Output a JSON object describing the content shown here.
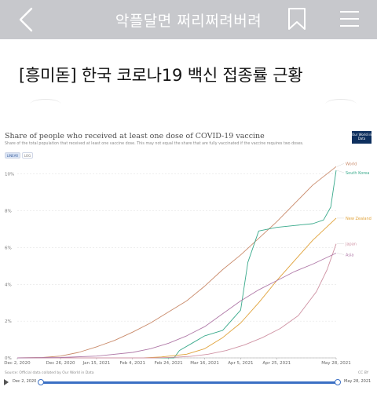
{
  "header": {
    "title": "악플달면 쩌리쩌려버려",
    "back_icon": "chevron-left-icon",
    "bookmark_icon": "bookmark-icon",
    "menu_icon": "hamburger-menu-icon"
  },
  "post": {
    "title": "[흥미돋] 한국 코로나19 백신 접종률 근황"
  },
  "chart_data": {
    "type": "line",
    "title": "Share of people who received at least one dose of COVID-19 vaccine",
    "subtitle": "Share of the total population that received at least one vaccine dose. This may not equal the share that are fully vaccinated if the vaccine requires two doses.",
    "scale_toggle": [
      "LINEAR",
      "LOG"
    ],
    "ylim": [
      0,
      10.5
    ],
    "y_ticks": [
      0,
      2,
      4,
      6,
      8,
      10
    ],
    "y_tick_labels": [
      "0%",
      "2%",
      "4%",
      "6%",
      "8%",
      "10%"
    ],
    "x_tick_labels": [
      "Dec 2, 2020",
      "Dec 26, 2020",
      "Jan 15, 2021",
      "Feb 4, 2021",
      "Feb 24, 2021",
      "Mar 16, 2021",
      "Apr 5, 2021",
      "Apr 25, 2021",
      "May 28, 2021"
    ],
    "x_tick_days": [
      0,
      24,
      44,
      64,
      84,
      104,
      124,
      144,
      177
    ],
    "x_max_days": 177,
    "grid": true,
    "series": [
      {
        "name": "World",
        "color": "#c98a6a",
        "x": [
          0,
          14,
          24,
          34,
          44,
          54,
          64,
          74,
          84,
          94,
          104,
          114,
          124,
          134,
          144,
          154,
          164,
          177
        ],
        "y": [
          0,
          0.02,
          0.1,
          0.3,
          0.6,
          0.95,
          1.4,
          1.9,
          2.5,
          3.1,
          3.9,
          4.8,
          5.6,
          6.5,
          7.4,
          8.4,
          9.4,
          10.4
        ]
      },
      {
        "name": "South Korea",
        "color": "#3aaa8c",
        "x": [
          0,
          87,
          90,
          97,
          104,
          114,
          124,
          128,
          134,
          144,
          154,
          164,
          170,
          174,
          177
        ],
        "y": [
          0,
          0,
          0.4,
          0.8,
          1.2,
          1.5,
          2.6,
          5.2,
          6.9,
          7.1,
          7.2,
          7.3,
          7.5,
          8.2,
          10.2
        ]
      },
      {
        "name": "New Zealand",
        "color": "#e0a23a",
        "x": [
          0,
          70,
          80,
          94,
          104,
          114,
          124,
          134,
          144,
          154,
          164,
          177
        ],
        "y": [
          0,
          0,
          0.05,
          0.2,
          0.5,
          1.1,
          1.9,
          3.0,
          4.2,
          5.3,
          6.4,
          7.6
        ]
      },
      {
        "name": "Japan",
        "color": "#cf93a4",
        "x": [
          0,
          76,
          86,
          96,
          106,
          116,
          126,
          136,
          146,
          156,
          166,
          172,
          177
        ],
        "y": [
          0,
          0,
          0.03,
          0.08,
          0.2,
          0.4,
          0.7,
          1.1,
          1.6,
          2.3,
          3.6,
          4.8,
          6.2
        ]
      },
      {
        "name": "Asia",
        "color": "#b07aa8",
        "x": [
          0,
          24,
          44,
          64,
          74,
          84,
          94,
          104,
          114,
          124,
          134,
          144,
          154,
          164,
          177
        ],
        "y": [
          0,
          0.02,
          0.1,
          0.3,
          0.5,
          0.8,
          1.2,
          1.7,
          2.4,
          3.1,
          3.7,
          4.2,
          4.7,
          5.1,
          5.7
        ]
      }
    ],
    "source": "Source: Official data collated by Our World in Data",
    "license": "CC BY",
    "logo_text": "Our World in Data",
    "timeline": {
      "start": "Dec 2, 2020",
      "end": "May 28, 2021"
    }
  }
}
